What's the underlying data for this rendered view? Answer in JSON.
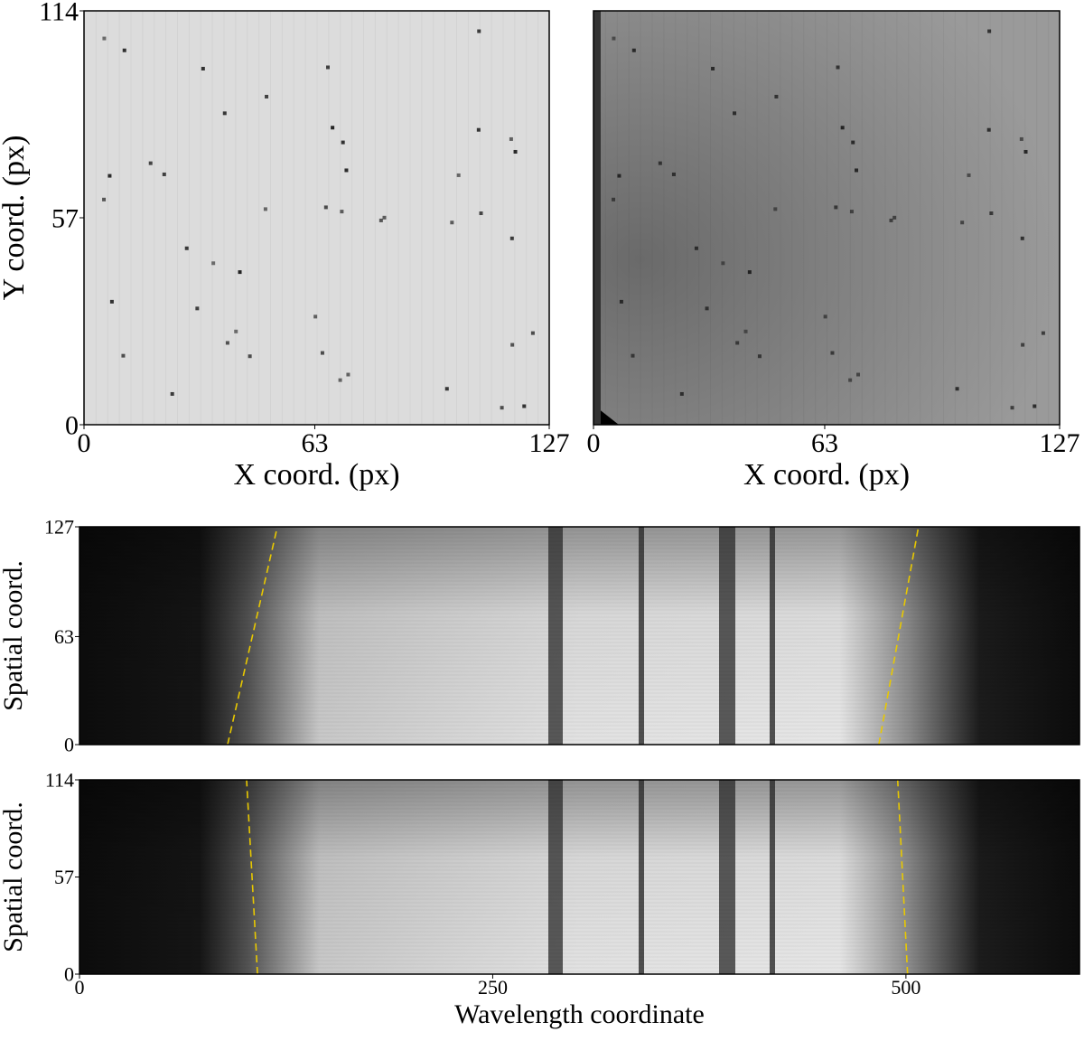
{
  "chart_data": [
    {
      "type": "image",
      "xlabel": "X coord. (px)",
      "ylabel": "Y coord. (px)",
      "xlim": [
        0,
        127
      ],
      "ylim": [
        0,
        114
      ],
      "xticks": [
        0,
        63,
        127
      ],
      "yticks": [
        0,
        57,
        114
      ]
    },
    {
      "type": "image",
      "xlabel": "X coord. (px)",
      "xlim": [
        0,
        127
      ],
      "ylim": [
        0,
        114
      ],
      "xticks": [
        0,
        63,
        127
      ]
    },
    {
      "type": "spectrum",
      "ylabel": "Spatial coord.",
      "xlim": [
        0,
        605
      ],
      "ylim": [
        0,
        127
      ],
      "yticks": [
        0,
        63,
        127
      ],
      "lines": [
        {
          "x": [
            89.6,
            119.7
          ],
          "y": [
            0,
            127
          ],
          "color": "#e8c800"
        },
        {
          "x": [
            483.6,
            507.6
          ],
          "y": [
            0,
            127
          ],
          "color": "#e8c800"
        }
      ]
    },
    {
      "type": "spectrum",
      "ylabel": "Spatial coord.",
      "xlabel": "Wavelength coordinate",
      "xlim": [
        0,
        605
      ],
      "ylim": [
        0,
        114
      ],
      "xticks": [
        0,
        250,
        500
      ],
      "yticks": [
        0,
        57,
        114
      ],
      "lines": [
        {
          "x": [
            107.7,
            101.1
          ],
          "y": [
            0,
            114
          ],
          "color": "#e8c800"
        },
        {
          "x": [
            501,
            495
          ],
          "y": [
            0,
            114
          ],
          "color": "#e8c800"
        }
      ]
    }
  ]
}
